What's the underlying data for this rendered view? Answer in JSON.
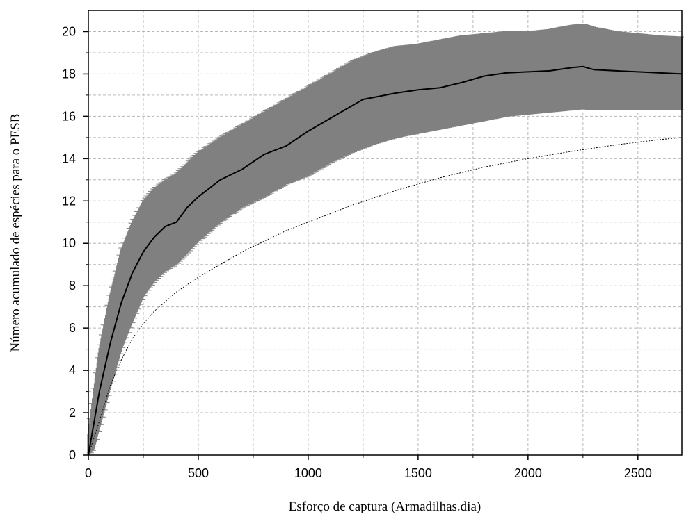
{
  "chart_data": {
    "type": "line",
    "xlabel": "Esforço de captura (Armadilhas.dia)",
    "ylabel": "Número acumulado de espécies para o PESB",
    "xlim": [
      0,
      2700
    ],
    "ylim": [
      0,
      21
    ],
    "xticks": [
      0,
      500,
      1000,
      1500,
      2000,
      2500
    ],
    "yticks": [
      0,
      2,
      4,
      6,
      8,
      10,
      12,
      14,
      16,
      18,
      20
    ],
    "grid": true,
    "colors": {
      "band": "#808080",
      "mean": "#000000",
      "dotted": "#000000",
      "grid": "#b8b8b8"
    },
    "series": [
      {
        "role": "mean",
        "x": [
          0,
          25,
          50,
          100,
          150,
          200,
          250,
          300,
          350,
          400,
          450,
          500,
          600,
          700,
          800,
          900,
          1000,
          1100,
          1200,
          1250,
          1300,
          1400,
          1500,
          1600,
          1700,
          1800,
          1900,
          2000,
          2100,
          2200,
          2250,
          2300,
          2400,
          2500,
          2600,
          2700
        ],
        "y": [
          0,
          1.5,
          3.0,
          5.3,
          7.2,
          8.6,
          9.6,
          10.3,
          10.8,
          11.0,
          11.7,
          12.2,
          13.0,
          13.5,
          14.2,
          14.6,
          15.3,
          15.9,
          16.5,
          16.8,
          16.9,
          17.1,
          17.25,
          17.35,
          17.6,
          17.9,
          18.05,
          18.1,
          18.15,
          18.3,
          18.35,
          18.2,
          18.15,
          18.1,
          18.05,
          18.0
        ]
      },
      {
        "role": "upper",
        "x": [
          0,
          25,
          50,
          100,
          150,
          200,
          250,
          300,
          350,
          400,
          500,
          600,
          700,
          800,
          900,
          1000,
          1100,
          1200,
          1300,
          1400,
          1500,
          1600,
          1700,
          1800,
          1900,
          2000,
          2100,
          2200,
          2250,
          2300,
          2400,
          2500,
          2600,
          2700
        ],
        "y": [
          1.0,
          3.0,
          5.0,
          7.6,
          9.7,
          11.0,
          12.0,
          12.6,
          13.0,
          13.3,
          14.3,
          15.0,
          15.6,
          16.2,
          16.8,
          17.4,
          18.0,
          18.6,
          19.0,
          19.3,
          19.4,
          19.6,
          19.8,
          19.9,
          20.0,
          20.0,
          20.1,
          20.3,
          20.35,
          20.2,
          20.0,
          19.9,
          19.8,
          19.75
        ]
      },
      {
        "role": "lower",
        "x": [
          0,
          25,
          50,
          100,
          150,
          200,
          250,
          300,
          350,
          400,
          500,
          600,
          700,
          800,
          900,
          1000,
          1100,
          1200,
          1300,
          1400,
          1500,
          1600,
          1700,
          1800,
          1900,
          2000,
          2100,
          2200,
          2250,
          2300,
          2400,
          2500,
          2600,
          2700
        ],
        "y": [
          0,
          0.3,
          1.3,
          3.2,
          5.0,
          6.3,
          7.5,
          8.2,
          8.7,
          9.0,
          10.1,
          11.0,
          11.7,
          12.2,
          12.8,
          13.2,
          13.8,
          14.3,
          14.7,
          15.0,
          15.2,
          15.4,
          15.6,
          15.8,
          16.0,
          16.1,
          16.2,
          16.3,
          16.35,
          16.3,
          16.3,
          16.3,
          16.3,
          16.3
        ]
      },
      {
        "role": "dotted",
        "x": [
          0,
          25,
          50,
          100,
          150,
          200,
          250,
          300,
          400,
          500,
          600,
          700,
          800,
          900,
          1000,
          1200,
          1400,
          1600,
          1800,
          2000,
          2200,
          2400,
          2600,
          2700
        ],
        "y": [
          0,
          0.8,
          1.6,
          3.3,
          4.5,
          5.5,
          6.2,
          6.8,
          7.7,
          8.4,
          9.0,
          9.6,
          10.1,
          10.6,
          11.0,
          11.8,
          12.5,
          13.1,
          13.6,
          14.0,
          14.35,
          14.65,
          14.9,
          15.0
        ]
      }
    ]
  }
}
